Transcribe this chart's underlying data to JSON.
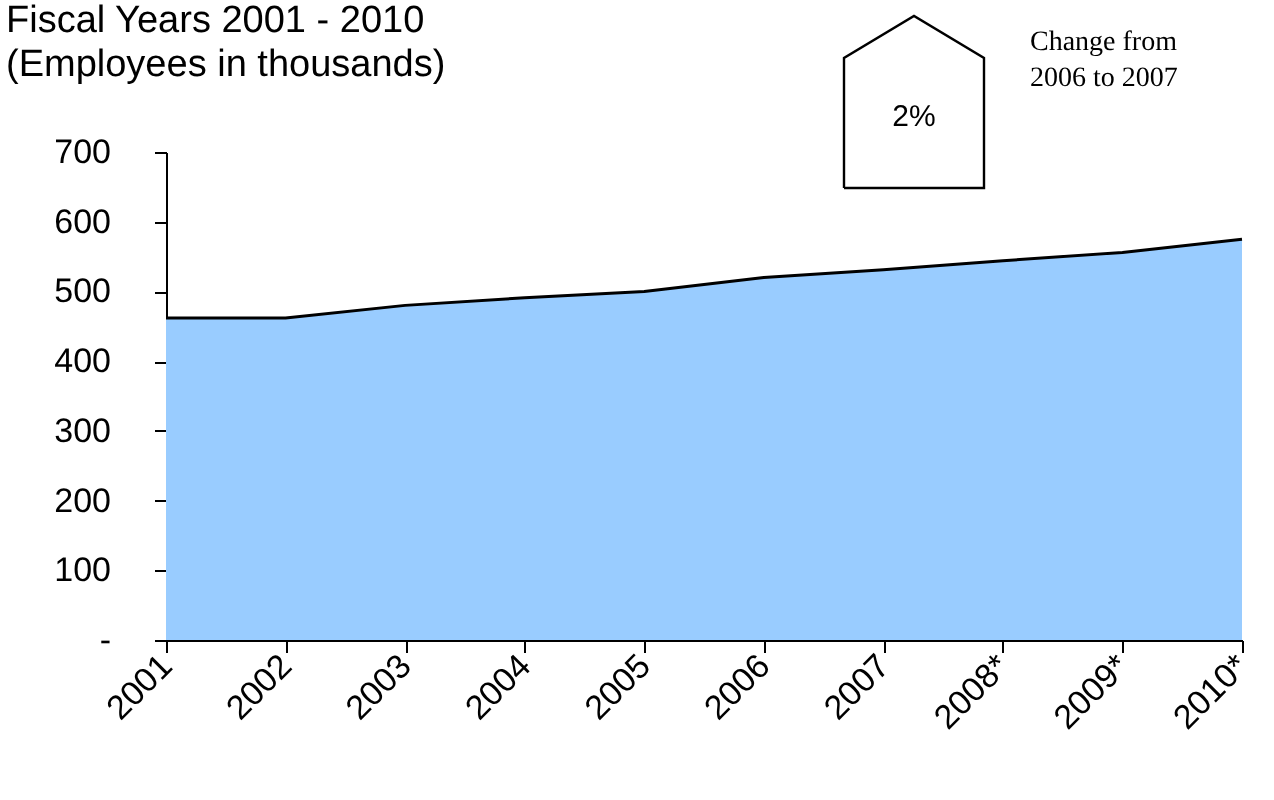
{
  "chart_data": {
    "type": "area",
    "title": "Fiscal Years 2001 - 2010",
    "subtitle": "(Employees in thousands)",
    "categories": [
      "2001",
      "2002",
      "2003",
      "2004",
      "2005",
      "2006",
      "2007",
      "2008*",
      "2009*",
      "2010*"
    ],
    "series": [
      {
        "color": "#99ccff",
        "values": [
          462,
          462,
          480,
          491,
          500,
          520,
          531,
          544,
          556,
          575
        ]
      }
    ],
    "ylim": [
      0,
      700
    ],
    "yticks": [
      {
        "value": 0,
        "label": "-"
      },
      100,
      200,
      300,
      400,
      500,
      600,
      700
    ],
    "grid": false,
    "annotations": [
      "2%",
      "Change from\n2006 to 2007"
    ]
  }
}
